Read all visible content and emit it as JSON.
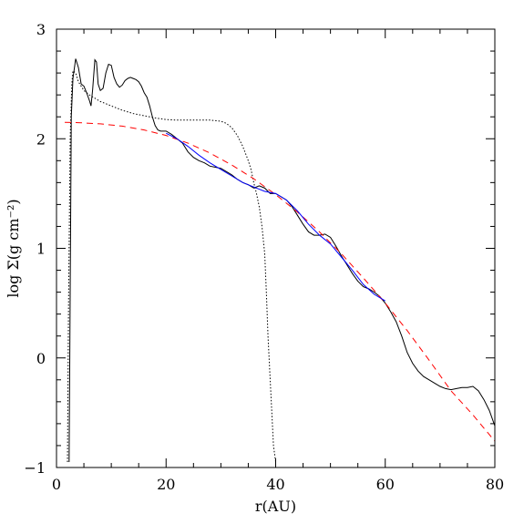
{
  "chart_data": {
    "type": "line",
    "xlabel": "r(AU)",
    "ylabel": "log Σ(g cm⁻²)",
    "xlim": [
      0,
      80
    ],
    "ylim": [
      -1,
      3
    ],
    "x_ticks": [
      0,
      20,
      40,
      60,
      80
    ],
    "y_ticks": [
      -1,
      0,
      1,
      2,
      3
    ],
    "x_minor_step": 5,
    "y_minor_step": 0.2,
    "grid": false,
    "legend": "none",
    "series": [
      {
        "style": "solid",
        "color": "#000000",
        "x": [
          2.3,
          2.5,
          2.7,
          3.0,
          3.5,
          4.0,
          4.5,
          5.0,
          5.5,
          6.0,
          6.3,
          6.6,
          7.0,
          7.3,
          7.6,
          8.0,
          8.5,
          9.0,
          9.5,
          10.0,
          10.5,
          11.0,
          11.5,
          12.0,
          12.5,
          13.0,
          13.5,
          14.0,
          14.5,
          15.0,
          15.5,
          16.0,
          16.5,
          17.0,
          17.5,
          18.0,
          18.5,
          19.0,
          20.0,
          21.0,
          22.0,
          23.0,
          24.0,
          25.0,
          26.0,
          27.0,
          28.0,
          29.0,
          30.0,
          31.0,
          32.0,
          33.0,
          34.0,
          35.0,
          36.0,
          37.0,
          38.0,
          39.0,
          40.0,
          41.0,
          42.0,
          43.0,
          44.0,
          45.0,
          46.0,
          47.0,
          48.0,
          49.0,
          50.0,
          51.0,
          52.0,
          53.0,
          54.0,
          55.0,
          56.0,
          57.0,
          58.0,
          59.0,
          60.0,
          61.0,
          62.0,
          63.0,
          64.0,
          65.0,
          66.0,
          67.0,
          68.0,
          69.0,
          70.0,
          71.0,
          72.0,
          73.0,
          74.0,
          75.0,
          76.0,
          77.0,
          78.0,
          79.0,
          80.0
        ],
        "y": [
          -0.95,
          0.6,
          2.2,
          2.55,
          2.73,
          2.65,
          2.5,
          2.48,
          2.42,
          2.35,
          2.3,
          2.45,
          2.72,
          2.7,
          2.5,
          2.44,
          2.46,
          2.6,
          2.68,
          2.67,
          2.56,
          2.5,
          2.47,
          2.49,
          2.53,
          2.55,
          2.56,
          2.55,
          2.54,
          2.52,
          2.48,
          2.42,
          2.38,
          2.3,
          2.2,
          2.12,
          2.08,
          2.07,
          2.07,
          2.04,
          2.0,
          1.96,
          1.88,
          1.83,
          1.8,
          1.78,
          1.75,
          1.74,
          1.73,
          1.7,
          1.67,
          1.63,
          1.6,
          1.58,
          1.55,
          1.57,
          1.55,
          1.5,
          1.5,
          1.47,
          1.44,
          1.38,
          1.3,
          1.22,
          1.15,
          1.12,
          1.12,
          1.13,
          1.1,
          1.02,
          0.93,
          0.85,
          0.77,
          0.7,
          0.65,
          0.63,
          0.6,
          0.56,
          0.5,
          0.42,
          0.33,
          0.2,
          0.05,
          -0.05,
          -0.12,
          -0.17,
          -0.2,
          -0.23,
          -0.26,
          -0.28,
          -0.29,
          -0.28,
          -0.27,
          -0.27,
          -0.26,
          -0.3,
          -0.38,
          -0.48,
          -0.62
        ]
      },
      {
        "style": "dotted",
        "color": "#000000",
        "x": [
          2.0,
          2.2,
          2.5,
          2.8,
          3.0,
          3.5,
          4.0,
          5.0,
          6.0,
          8.0,
          10.0,
          12.0,
          14.0,
          16.0,
          18.0,
          20.0,
          22.0,
          24.0,
          26.0,
          28.0,
          29.0,
          30.0,
          31.0,
          32.0,
          33.0,
          34.0,
          35.0,
          35.5,
          36.0,
          36.5,
          37.0,
          37.5,
          38.0,
          38.3,
          38.6,
          39.0,
          39.3,
          39.6,
          40.0
        ],
        "y": [
          -0.95,
          0.5,
          2.0,
          2.5,
          2.62,
          2.6,
          2.52,
          2.44,
          2.4,
          2.34,
          2.3,
          2.26,
          2.23,
          2.21,
          2.19,
          2.175,
          2.17,
          2.17,
          2.17,
          2.17,
          2.165,
          2.16,
          2.14,
          2.1,
          2.03,
          1.93,
          1.8,
          1.72,
          1.6,
          1.5,
          1.38,
          1.2,
          0.95,
          0.6,
          0.2,
          -0.2,
          -0.5,
          -0.8,
          -0.95
        ]
      },
      {
        "style": "dashed",
        "color": "#ff0000",
        "x": [
          1.5,
          4,
          8,
          12,
          16,
          20,
          24,
          28,
          32,
          36,
          40,
          44,
          48,
          52,
          56,
          60,
          64,
          68,
          72,
          76,
          80
        ],
        "y": [
          2.15,
          2.147,
          2.136,
          2.115,
          2.08,
          2.03,
          1.96,
          1.87,
          1.76,
          1.635,
          1.49,
          1.33,
          1.15,
          0.95,
          0.73,
          0.5,
          0.25,
          -0.02,
          -0.3,
          -0.52,
          -0.76
        ]
      },
      {
        "style": "solid",
        "color": "#0000ff",
        "x": [
          20,
          22,
          24,
          26,
          28,
          30,
          32,
          34,
          36,
          38,
          40,
          42,
          44,
          46,
          48,
          50,
          52,
          54,
          56,
          58,
          60
        ],
        "y": [
          2.05,
          2.0,
          1.93,
          1.85,
          1.78,
          1.72,
          1.66,
          1.6,
          1.56,
          1.52,
          1.5,
          1.44,
          1.34,
          1.22,
          1.12,
          1.04,
          0.92,
          0.8,
          0.67,
          0.58,
          0.52
        ]
      }
    ]
  }
}
